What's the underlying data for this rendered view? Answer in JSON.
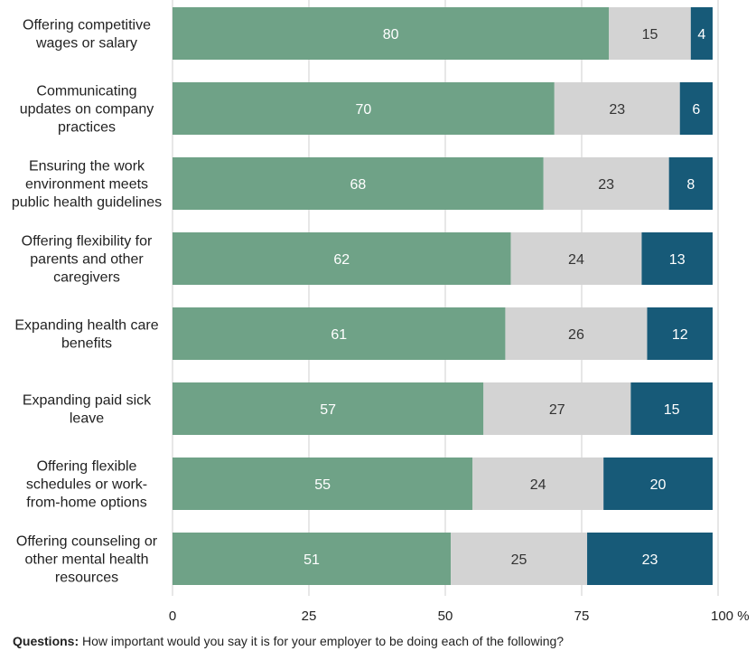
{
  "chart_data": {
    "type": "bar",
    "orientation": "horizontal",
    "stacked": true,
    "categories": [
      [
        "Offering competitive",
        "wages or salary"
      ],
      [
        "Communicating",
        "updates on company",
        "practices"
      ],
      [
        "Ensuring the work",
        "environment meets",
        "public health guidelines"
      ],
      [
        "Offering flexibility for",
        "parents and other",
        "caregivers"
      ],
      [
        "Expanding health care",
        "benefits"
      ],
      [
        "Expanding paid sick",
        "leave"
      ],
      [
        "Offering flexible",
        "schedules or work-",
        "from-home options"
      ],
      [
        "Offering counseling or",
        "other mental health",
        "resources"
      ]
    ],
    "series": [
      {
        "values": [
          80,
          70,
          68,
          62,
          61,
          57,
          55,
          51
        ],
        "color": "#6fa287",
        "label_color": "#ffffff"
      },
      {
        "values": [
          15,
          23,
          23,
          24,
          26,
          27,
          24,
          25
        ],
        "color": "#d3d3d3",
        "label_color": "#333333"
      },
      {
        "values": [
          4,
          6,
          8,
          13,
          12,
          15,
          20,
          23
        ],
        "color": "#175a78",
        "label_color": "#ffffff"
      }
    ],
    "xlim": [
      0,
      100
    ],
    "x_ticks": [
      0,
      25,
      50,
      75,
      100
    ],
    "x_tick_labels": [
      "0",
      "25",
      "50",
      "75",
      "100 %"
    ],
    "grid": true,
    "grid_color": "#cfcfcf"
  },
  "footnote": {
    "label": "Questions:",
    "text": " How important would you say it is for your employer to be doing each of the following?"
  }
}
